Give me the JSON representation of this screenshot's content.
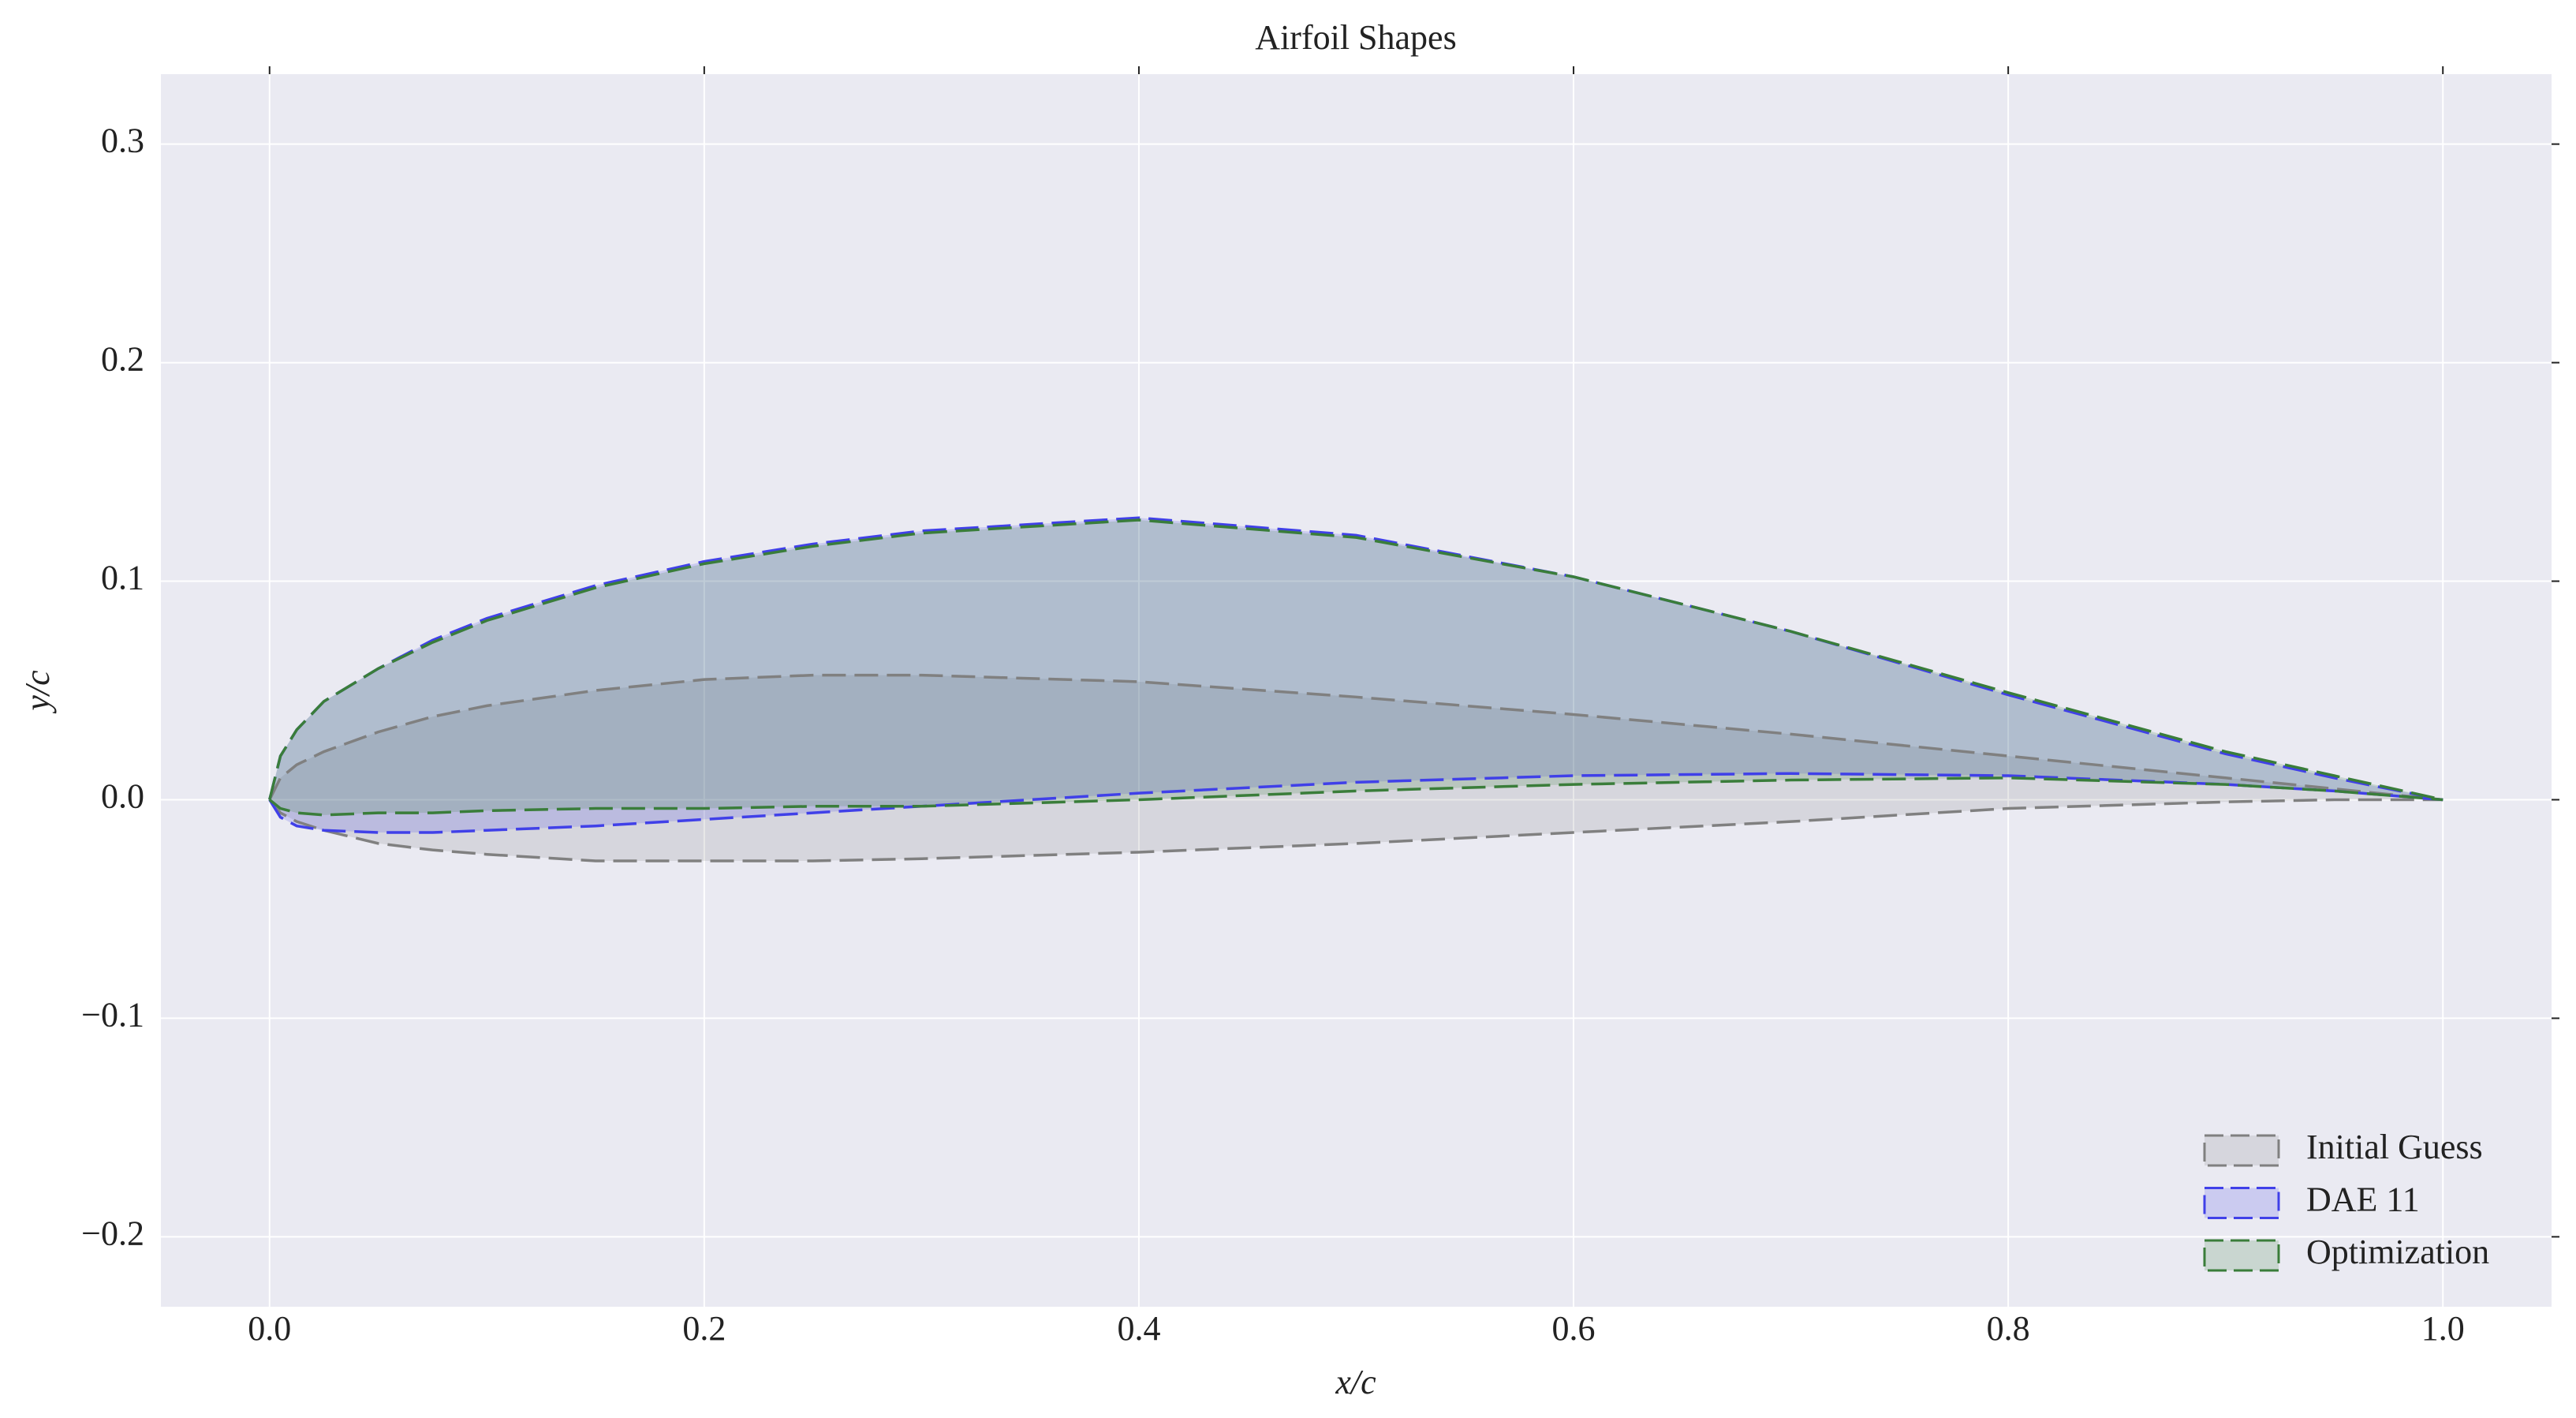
{
  "chart_data": {
    "type": "airfoil",
    "title": "Airfoil Shapes",
    "xlabel": "x/c",
    "ylabel": "y/c",
    "xlim": [
      -0.05,
      1.05
    ],
    "ylim": [
      -0.232,
      0.332
    ],
    "xticks": [
      {
        "value": 0,
        "label": "0.0"
      },
      {
        "value": 0.2,
        "label": "0.2"
      },
      {
        "value": 0.4,
        "label": "0.4"
      },
      {
        "value": 0.6,
        "label": "0.6"
      },
      {
        "value": 0.8,
        "label": "0.8"
      },
      {
        "value": 1,
        "label": "1.0"
      }
    ],
    "yticks": [
      {
        "value": -0.2,
        "label": "−0.2"
      },
      {
        "value": -0.1,
        "label": "−0.1"
      },
      {
        "value": 0,
        "label": "0.0"
      },
      {
        "value": 0.1,
        "label": "0.1"
      },
      {
        "value": 0.2,
        "label": "0.2"
      },
      {
        "value": 0.3,
        "label": "0.3"
      }
    ],
    "grid": true,
    "legend": "lower right",
    "x": [
      0,
      0.005,
      0.0125,
      0.025,
      0.05,
      0.075,
      0.1,
      0.15,
      0.2,
      0.25,
      0.3,
      0.4,
      0.5,
      0.6,
      0.7,
      0.8,
      0.9,
      0.95,
      1.0
    ],
    "series": [
      {
        "name": "Initial Guess",
        "color": "#808080",
        "upper": [
          0,
          0.01,
          0.016,
          0.022,
          0.031,
          0.038,
          0.043,
          0.05,
          0.055,
          0.057,
          0.057,
          0.054,
          0.047,
          0.039,
          0.03,
          0.02,
          0.01,
          0.005,
          0
        ],
        "lower": [
          0,
          -0.006,
          -0.01,
          -0.014,
          -0.02,
          -0.023,
          -0.025,
          -0.028,
          -0.028,
          -0.028,
          -0.027,
          -0.024,
          -0.02,
          -0.015,
          -0.01,
          -0.004,
          -0.001,
          0,
          0
        ]
      },
      {
        "name": "DAE 11",
        "color": "#4040e8",
        "upper": [
          0,
          0.02,
          0.032,
          0.045,
          0.06,
          0.073,
          0.083,
          0.098,
          0.109,
          0.117,
          0.123,
          0.129,
          0.121,
          0.102,
          0.077,
          0.048,
          0.021,
          0.01,
          0
        ],
        "lower": [
          0,
          -0.008,
          -0.012,
          -0.014,
          -0.015,
          -0.015,
          -0.014,
          -0.012,
          -0.009,
          -0.006,
          -0.003,
          0.003,
          0.008,
          0.011,
          0.012,
          0.011,
          0.007,
          0.004,
          0
        ]
      },
      {
        "name": "Optimization",
        "color": "#3a7d3a",
        "upper": [
          0,
          0.02,
          0.032,
          0.045,
          0.06,
          0.072,
          0.082,
          0.097,
          0.108,
          0.116,
          0.122,
          0.128,
          0.12,
          0.102,
          0.077,
          0.049,
          0.022,
          0.011,
          0
        ],
        "lower": [
          0,
          -0.004,
          -0.006,
          -0.007,
          -0.006,
          -0.006,
          -0.005,
          -0.004,
          -0.004,
          -0.003,
          -0.003,
          0,
          0.004,
          0.007,
          0.009,
          0.01,
          0.007,
          0.004,
          0
        ]
      }
    ]
  }
}
